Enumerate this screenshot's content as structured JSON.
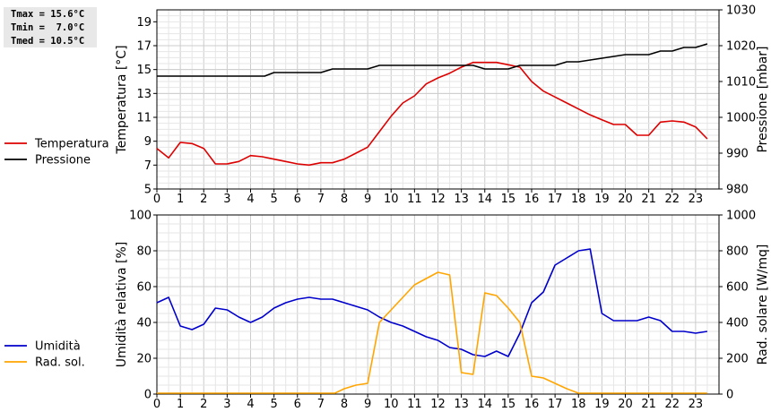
{
  "stats": {
    "tmax": "Tmax = 15.6°C",
    "tmin": "Tmin =  7.0°C",
    "tmed": "Tmed = 10.5°C"
  },
  "chart_data": [
    {
      "type": "line",
      "x_ticks": [
        0,
        1,
        2,
        3,
        4,
        5,
        6,
        7,
        8,
        9,
        10,
        11,
        12,
        13,
        14,
        15,
        16,
        17,
        18,
        19,
        20,
        21,
        22,
        23
      ],
      "xlim": [
        0,
        24
      ],
      "y_left": {
        "label": "Temperatura [°C]",
        "ylim": [
          5,
          20
        ],
        "ticks": [
          5,
          7,
          9,
          11,
          13,
          15,
          17,
          19
        ]
      },
      "y_right": {
        "label": "Pressione [mbar]",
        "ylim": [
          980,
          1030
        ],
        "ticks": [
          980,
          990,
          1000,
          1010,
          1020,
          1030
        ]
      },
      "grid": true,
      "legend_placement": "left",
      "series": [
        {
          "name": "Temperatura",
          "axis": "left",
          "color": "#dd0000",
          "x": [
            0,
            0.5,
            1,
            1.5,
            2,
            2.5,
            3,
            3.5,
            4,
            4.5,
            5,
            5.5,
            6,
            6.5,
            7,
            7.5,
            8,
            8.5,
            9,
            9.5,
            10,
            10.5,
            11,
            11.5,
            12,
            12.5,
            13,
            13.5,
            14,
            14.5,
            15,
            15.5,
            16,
            16.5,
            17,
            17.5,
            18,
            18.5,
            19,
            19.5,
            20,
            20.5,
            21,
            21.5,
            22,
            22.5,
            23,
            23.5
          ],
          "values": [
            8.4,
            7.6,
            8.9,
            8.8,
            8.4,
            7.1,
            7.1,
            7.3,
            7.8,
            7.7,
            7.5,
            7.3,
            7.1,
            7.0,
            7.2,
            7.2,
            7.5,
            8.0,
            8.5,
            9.8,
            11.1,
            12.2,
            12.8,
            13.8,
            14.3,
            14.7,
            15.2,
            15.6,
            15.6,
            15.6,
            15.4,
            15.2,
            14.0,
            13.2,
            12.7,
            12.2,
            11.7,
            11.2,
            10.8,
            10.4,
            10.4,
            9.5,
            9.5,
            10.6,
            10.7,
            10.6,
            10.2,
            9.2
          ]
        },
        {
          "name": "Pressione",
          "axis": "right",
          "color": "#000000",
          "x": [
            0,
            1,
            2,
            3,
            4,
            4.6,
            5,
            6,
            7,
            7.5,
            8,
            9,
            9.5,
            10,
            11,
            12,
            13,
            13.5,
            14,
            15,
            15.5,
            16,
            17,
            17.5,
            18,
            19,
            20,
            21,
            21.5,
            22,
            22.5,
            23,
            23.5
          ],
          "values": [
            1011.5,
            1011.5,
            1011.5,
            1011.5,
            1011.5,
            1011.5,
            1012.5,
            1012.5,
            1012.5,
            1013.5,
            1013.5,
            1013.5,
            1014.5,
            1014.5,
            1014.5,
            1014.5,
            1014.5,
            1014.5,
            1013.5,
            1013.5,
            1014.5,
            1014.5,
            1014.5,
            1015.5,
            1015.5,
            1016.5,
            1017.5,
            1017.5,
            1018.5,
            1018.5,
            1019.5,
            1019.5,
            1020.5
          ]
        }
      ]
    },
    {
      "type": "line",
      "x_ticks": [
        0,
        1,
        2,
        3,
        4,
        5,
        6,
        7,
        8,
        9,
        10,
        11,
        12,
        13,
        14,
        15,
        16,
        17,
        18,
        19,
        20,
        21,
        22,
        23
      ],
      "xlim": [
        0,
        24
      ],
      "y_left": {
        "label": "Umidità relativa [%]",
        "ylim": [
          0,
          100
        ],
        "ticks": [
          0,
          20,
          40,
          60,
          80,
          100
        ]
      },
      "y_right": {
        "label": "Rad. solare [W/mq]",
        "ylim": [
          0,
          1000
        ],
        "ticks": [
          0,
          200,
          400,
          600,
          800,
          1000
        ]
      },
      "grid": true,
      "legend_placement": "left",
      "series": [
        {
          "name": "Umidità",
          "axis": "left",
          "color": "#0000cc",
          "x": [
            0,
            0.5,
            1,
            1.5,
            2,
            2.5,
            3,
            3.5,
            4,
            4.5,
            5,
            5.5,
            6,
            6.5,
            7,
            7.5,
            8,
            8.5,
            9,
            9.5,
            10,
            10.5,
            11,
            11.5,
            12,
            12.5,
            13,
            13.5,
            14,
            14.5,
            15,
            15.5,
            16,
            16.5,
            17,
            17.5,
            18,
            18.5,
            19,
            19.5,
            20,
            20.5,
            21,
            21.5,
            22,
            22.5,
            23,
            23.5
          ],
          "values": [
            51,
            54,
            38,
            36,
            39,
            48,
            47,
            43,
            40,
            43,
            48,
            51,
            53,
            54,
            53,
            53,
            51,
            49,
            47,
            43,
            40,
            38,
            35,
            32,
            30,
            26,
            25,
            22,
            21,
            24,
            21,
            34,
            51,
            57,
            72,
            76,
            80,
            81,
            45,
            41,
            41,
            41,
            43,
            41,
            35,
            35,
            34,
            35
          ]
        },
        {
          "name": "Rad. sol.",
          "axis": "right",
          "color": "#ffa500",
          "x": [
            0,
            1,
            2,
            3,
            4,
            5,
            6,
            7,
            7.6,
            8,
            8.5,
            9,
            9.5,
            10,
            10.5,
            11,
            11.5,
            12,
            12.5,
            13,
            13.5,
            14,
            14.5,
            15,
            15.5,
            16,
            16.5,
            17,
            17.5,
            18,
            19,
            20,
            21,
            22,
            23,
            23.5
          ],
          "values": [
            5,
            5,
            5,
            5,
            5,
            5,
            5,
            5,
            5,
            30,
            50,
            60,
            400,
            470,
            540,
            610,
            645,
            680,
            665,
            120,
            110,
            565,
            550,
            480,
            400,
            100,
            90,
            60,
            30,
            5,
            5,
            5,
            5,
            5,
            5,
            5
          ]
        }
      ]
    }
  ]
}
